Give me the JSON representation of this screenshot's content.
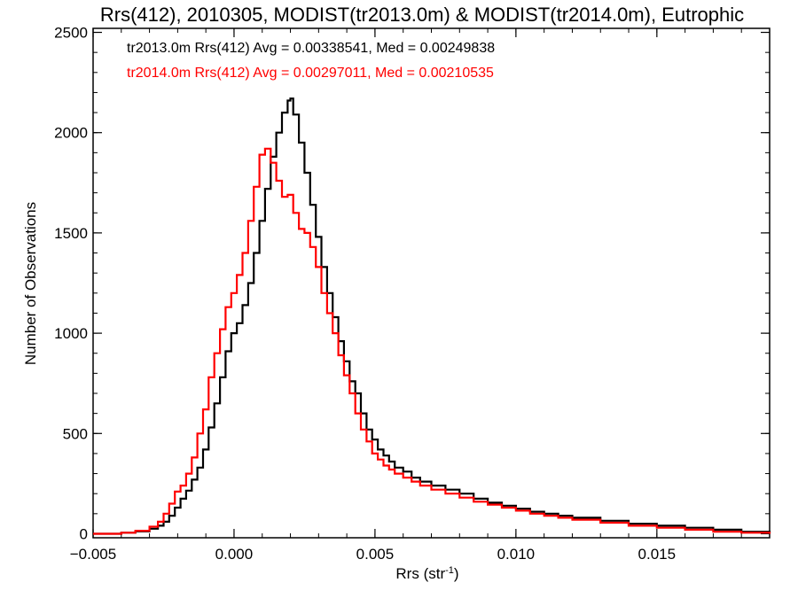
{
  "chart_data": {
    "type": "line",
    "style": "step histogram",
    "title": "Rrs(412), 2010305, MODIST(tr2013.0m) & MODIST(tr2014.0m), Eutrophic",
    "xlabel": "Rrs (str",
    "xlabel_sup": "-1",
    "xlabel_close": ")",
    "ylabel": "Number of Observations",
    "xlim": [
      -0.005,
      0.019
    ],
    "ylim": [
      -20,
      2520
    ],
    "xticks": [
      -0.005,
      0.0,
      0.005,
      0.01,
      0.015
    ],
    "xtick_labels": [
      "−0.005",
      "0.000",
      "0.005",
      "0.010",
      "0.015"
    ],
    "yticks": [
      0,
      500,
      1000,
      1500,
      2000,
      2500
    ],
    "ytick_labels": [
      "0",
      "500",
      "1000",
      "1500",
      "2000",
      "2500"
    ],
    "grid": false,
    "legend_position": "top-left",
    "series": [
      {
        "name": "tr2013.0m Rrs(412) Avg = 0.00338541, Med = 0.00249838",
        "color": "#000000",
        "x": [
          -0.005,
          -0.004,
          -0.0035,
          -0.003,
          -0.0027,
          -0.0025,
          -0.0023,
          -0.0021,
          -0.0019,
          -0.0017,
          -0.0015,
          -0.0013,
          -0.0011,
          -0.0009,
          -0.0007,
          -0.0005,
          -0.0003,
          -0.0001,
          0.0001,
          0.0003,
          0.0005,
          0.0007,
          0.0009,
          0.0011,
          0.0013,
          0.0015,
          0.0017,
          0.0019,
          0.002,
          0.0021,
          0.0023,
          0.0025,
          0.0027,
          0.0029,
          0.0031,
          0.0033,
          0.0035,
          0.0037,
          0.0039,
          0.0041,
          0.0043,
          0.0045,
          0.0047,
          0.0049,
          0.0051,
          0.0053,
          0.0055,
          0.0057,
          0.006,
          0.0063,
          0.0066,
          0.007,
          0.0075,
          0.008,
          0.0085,
          0.009,
          0.0095,
          0.01,
          0.0105,
          0.011,
          0.0115,
          0.012,
          0.013,
          0.014,
          0.015,
          0.016,
          0.017,
          0.018,
          0.019
        ],
        "y": [
          0,
          5,
          12,
          25,
          40,
          60,
          90,
          130,
          175,
          215,
          270,
          330,
          420,
          530,
          650,
          780,
          910,
          1000,
          1050,
          1140,
          1250,
          1400,
          1560,
          1720,
          1880,
          2000,
          2100,
          2160,
          2170,
          2090,
          1950,
          1800,
          1640,
          1480,
          1330,
          1200,
          1080,
          960,
          860,
          760,
          700,
          600,
          520,
          470,
          420,
          390,
          360,
          330,
          310,
          280,
          260,
          240,
          220,
          200,
          175,
          155,
          140,
          125,
          110,
          100,
          90,
          80,
          65,
          50,
          40,
          30,
          20,
          10,
          0
        ]
      },
      {
        "name": "tr2014.0m Rrs(412) Avg = 0.00297011, Med = 0.00210535",
        "color": "#ff0000",
        "x": [
          -0.005,
          -0.004,
          -0.0035,
          -0.003,
          -0.0027,
          -0.0025,
          -0.0023,
          -0.0021,
          -0.0019,
          -0.0017,
          -0.0015,
          -0.0013,
          -0.0011,
          -0.0009,
          -0.0007,
          -0.0005,
          -0.0003,
          -0.0001,
          0.0001,
          0.0003,
          0.0005,
          0.0007,
          0.0009,
          0.0011,
          0.0013,
          0.0015,
          0.0017,
          0.0019,
          0.0021,
          0.0023,
          0.0025,
          0.0027,
          0.0029,
          0.0031,
          0.0033,
          0.0035,
          0.0037,
          0.0039,
          0.0041,
          0.0043,
          0.0045,
          0.0047,
          0.0049,
          0.0051,
          0.0053,
          0.0055,
          0.0057,
          0.006,
          0.0063,
          0.0066,
          0.007,
          0.0075,
          0.008,
          0.0085,
          0.009,
          0.0095,
          0.01,
          0.0105,
          0.011,
          0.0115,
          0.012,
          0.013,
          0.014,
          0.015,
          0.016,
          0.017,
          0.018,
          0.019
        ],
        "y": [
          0,
          5,
          15,
          35,
          60,
          100,
          150,
          210,
          240,
          300,
          380,
          500,
          620,
          780,
          900,
          1020,
          1130,
          1200,
          1290,
          1400,
          1560,
          1730,
          1890,
          1920,
          1850,
          1760,
          1680,
          1690,
          1600,
          1520,
          1500,
          1430,
          1330,
          1200,
          1100,
          1000,
          890,
          790,
          700,
          600,
          520,
          460,
          400,
          370,
          340,
          320,
          300,
          280,
          260,
          240,
          220,
          200,
          180,
          160,
          145,
          130,
          115,
          100,
          90,
          80,
          70,
          55,
          40,
          30,
          20,
          10,
          5,
          0
        ]
      }
    ]
  }
}
